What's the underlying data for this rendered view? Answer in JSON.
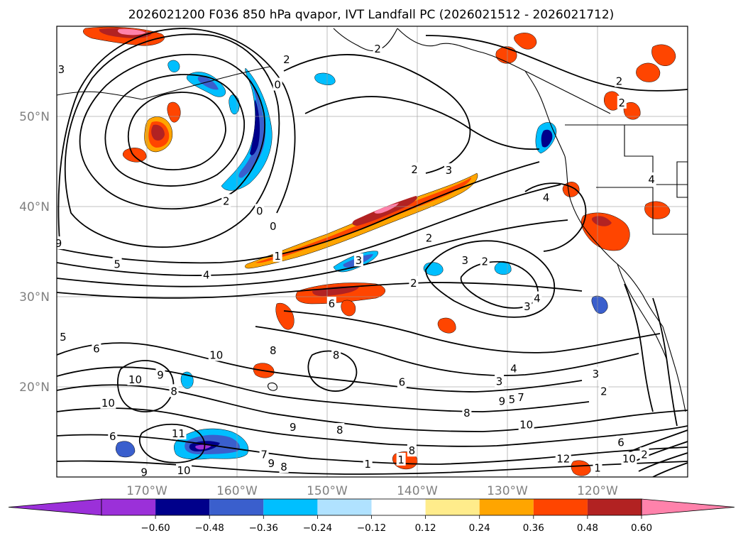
{
  "title": "2026021200 F036 850 hPa qvapor, IVT Landfall PC (2026021512 - 2026021712)",
  "map": {
    "latitudes": [
      {
        "value": 50,
        "label": "50°N"
      },
      {
        "value": 40,
        "label": "40°N"
      },
      {
        "value": 30,
        "label": "30°N"
      },
      {
        "value": 20,
        "label": "20°N"
      }
    ],
    "longitudes": [
      {
        "value": -170,
        "label": "170°W"
      },
      {
        "value": -160,
        "label": "160°W"
      },
      {
        "value": -150,
        "label": "150°W"
      },
      {
        "value": -140,
        "label": "140°W"
      },
      {
        "value": -130,
        "label": "130°W"
      },
      {
        "value": -120,
        "label": "120°W"
      }
    ],
    "contour_labels": [
      {
        "text": "2",
        "lon": -144.4,
        "lat": 57.5
      },
      {
        "text": "3",
        "lon": -179.5,
        "lat": 55.2
      },
      {
        "text": "2",
        "lon": -154.5,
        "lat": 56.3
      },
      {
        "text": "0",
        "lon": -155.5,
        "lat": 53.5
      },
      {
        "text": "2",
        "lon": -117.6,
        "lat": 53.9
      },
      {
        "text": "2",
        "lon": -117.3,
        "lat": 51.5
      },
      {
        "text": "2",
        "lon": -140.3,
        "lat": 44.1
      },
      {
        "text": "3",
        "lon": -136.5,
        "lat": 44.0
      },
      {
        "text": "4",
        "lon": -125.7,
        "lat": 41.0
      },
      {
        "text": "4",
        "lon": -114.0,
        "lat": 43.0
      },
      {
        "text": "2",
        "lon": -161.2,
        "lat": 40.6
      },
      {
        "text": "0",
        "lon": -157.5,
        "lat": 39.5
      },
      {
        "text": "0",
        "lon": -156.0,
        "lat": 37.8
      },
      {
        "text": "2",
        "lon": -138.7,
        "lat": 36.5
      },
      {
        "text": "1",
        "lon": -155.5,
        "lat": 34.5
      },
      {
        "text": "3",
        "lon": -146.5,
        "lat": 34.0
      },
      {
        "text": "3",
        "lon": -134.7,
        "lat": 34.0
      },
      {
        "text": "2",
        "lon": -132.5,
        "lat": 33.9
      },
      {
        "text": "5",
        "lon": -173.3,
        "lat": 33.6
      },
      {
        "text": "4",
        "lon": -163.4,
        "lat": 32.4
      },
      {
        "text": "2",
        "lon": -140.4,
        "lat": 31.5
      },
      {
        "text": "6",
        "lon": -149.5,
        "lat": 29.2
      },
      {
        "text": "4",
        "lon": -126.7,
        "lat": 29.8
      },
      {
        "text": "3",
        "lon": -127.8,
        "lat": 28.9
      },
      {
        "text": "9",
        "lon": -179.8,
        "lat": 35.9
      },
      {
        "text": "5",
        "lon": -179.3,
        "lat": 25.5
      },
      {
        "text": "6",
        "lon": -175.6,
        "lat": 24.2
      },
      {
        "text": "8",
        "lon": -156.0,
        "lat": 24.0
      },
      {
        "text": "8",
        "lon": -149.0,
        "lat": 23.5
      },
      {
        "text": "10",
        "lon": -162.3,
        "lat": 23.5
      },
      {
        "text": "3",
        "lon": -120.2,
        "lat": 21.4
      },
      {
        "text": "10",
        "lon": -171.3,
        "lat": 20.8
      },
      {
        "text": "9",
        "lon": -168.5,
        "lat": 21.3
      },
      {
        "text": "8",
        "lon": -167.0,
        "lat": 19.5
      },
      {
        "text": "6",
        "lon": -141.7,
        "lat": 20.5
      },
      {
        "text": "4",
        "lon": -129.3,
        "lat": 22.0
      },
      {
        "text": "3",
        "lon": -130.9,
        "lat": 20.6
      },
      {
        "text": "2",
        "lon": -119.3,
        "lat": 19.5
      },
      {
        "text": "9",
        "lon": -130.6,
        "lat": 18.4
      },
      {
        "text": "5",
        "lon": -129.5,
        "lat": 18.6
      },
      {
        "text": "7",
        "lon": -128.5,
        "lat": 18.8
      },
      {
        "text": "8",
        "lon": -134.5,
        "lat": 17.1
      },
      {
        "text": "10",
        "lon": -174.3,
        "lat": 18.2
      },
      {
        "text": "10",
        "lon": -127.9,
        "lat": 15.8
      },
      {
        "text": "9",
        "lon": -153.8,
        "lat": 15.5
      },
      {
        "text": "8",
        "lon": -148.6,
        "lat": 15.2
      },
      {
        "text": "11",
        "lon": -166.5,
        "lat": 14.8
      },
      {
        "text": "6",
        "lon": -173.8,
        "lat": 14.5
      },
      {
        "text": "8",
        "lon": -140.6,
        "lat": 12.9
      },
      {
        "text": "7",
        "lon": -157.0,
        "lat": 12.5
      },
      {
        "text": "9",
        "lon": -156.2,
        "lat": 11.5
      },
      {
        "text": "8",
        "lon": -154.8,
        "lat": 11.1
      },
      {
        "text": "1",
        "lon": -145.5,
        "lat": 11.4
      },
      {
        "text": "1",
        "lon": -141.8,
        "lat": 11.9
      },
      {
        "text": "12",
        "lon": -123.8,
        "lat": 12.0
      },
      {
        "text": "6",
        "lon": -117.4,
        "lat": 13.8
      },
      {
        "text": "10",
        "lon": -165.9,
        "lat": 10.7
      },
      {
        "text": "9",
        "lon": -170.3,
        "lat": 10.5
      },
      {
        "text": "1",
        "lon": -120.0,
        "lat": 11.0
      },
      {
        "text": "10",
        "lon": -116.5,
        "lat": 12.0
      },
      {
        "text": "2",
        "lon": -114.8,
        "lat": 12.5
      }
    ]
  },
  "colorbar": {
    "tick_labels": [
      "−0.60",
      "−0.48",
      "−0.36",
      "−0.24",
      "−0.12",
      "0.12",
      "0.24",
      "0.36",
      "0.48",
      "0.60"
    ],
    "colors": {
      "extend_low": "#9b30d9",
      "bins": [
        "#9b30d9",
        "#00008b",
        "#3a5fcd",
        "#00bfff",
        "#b0e2ff",
        "#ffffff",
        "#ffec8b",
        "#ffa500",
        "#ff4500",
        "#b22222"
      ],
      "extend_high": "#ff82ab"
    }
  }
}
